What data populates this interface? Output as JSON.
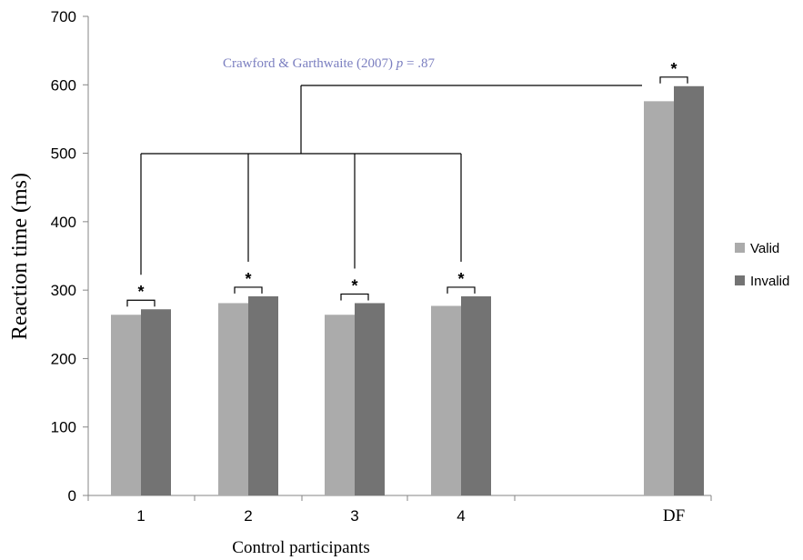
{
  "chart_data": {
    "type": "bar",
    "categories": [
      "1",
      "2",
      "3",
      "4",
      "DF"
    ],
    "series": [
      {
        "name": "Valid",
        "color": "#ababab",
        "values": [
          264,
          281,
          264,
          277,
          576
        ]
      },
      {
        "name": "Invalid",
        "color": "#737373",
        "values": [
          272,
          291,
          281,
          291,
          598
        ]
      }
    ],
    "ylabel": "Reaction time (ms)",
    "xlabel": "Control participants",
    "ylim": [
      0,
      700
    ],
    "yticks": [
      0,
      100,
      200,
      300,
      400,
      500,
      600,
      700
    ],
    "grid": false,
    "legend_position": "right",
    "significance_marker": "*",
    "annotation": {
      "text_pre": "Crawford & Garthwaite (2007) ",
      "p_label": "p",
      "text_post": " = .87"
    }
  }
}
